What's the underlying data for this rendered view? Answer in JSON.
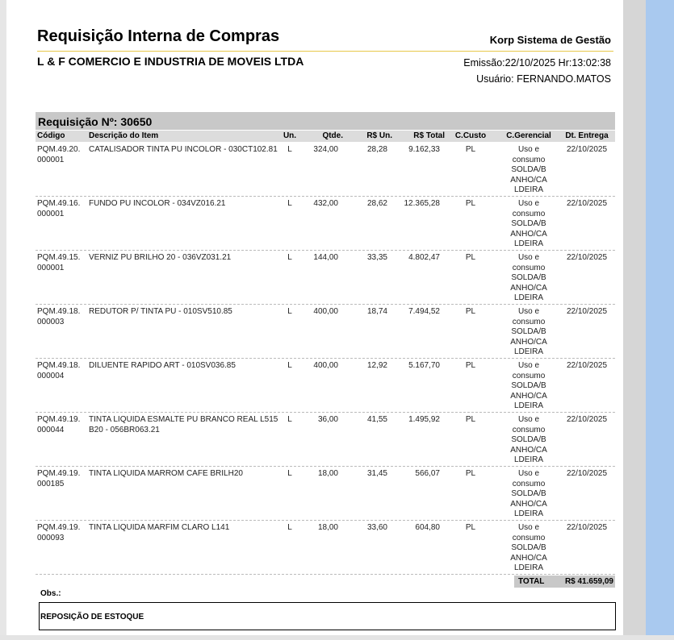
{
  "header": {
    "title": "Requisição Interna de Compras",
    "system": "Korp Sistema de Gestão",
    "company": "L & F COMERCIO E INDUSTRIA DE MOVEIS LTDA",
    "issued": "Emissão:22/10/2025 Hr:13:02:38",
    "user": "Usuário: FERNANDO.MATOS"
  },
  "requisition": "Requisição Nº: 30650",
  "table": {
    "columns": [
      "Código",
      "Descrição do Item",
      "Un.",
      "Qtde.",
      "R$ Un.",
      "R$ Total",
      "C.Custo",
      "C.Gerencial",
      "Dt. Entrega"
    ],
    "rows": [
      [
        "PQM.49.20.000001",
        "CATALISADOR TINTA PU INCOLOR - 030CT102.81",
        "L",
        "324,00",
        "28,28",
        "9.162,33",
        "PL",
        "Uso e consumo SOLDA/BANHO/CALDEIRA",
        "22/10/2025"
      ],
      [
        "PQM.49.16.000001",
        "FUNDO PU INCOLOR - 034VZ016.21",
        "L",
        "432,00",
        "28,62",
        "12.365,28",
        "PL",
        "Uso e consumo SOLDA/BANHO/CALDEIRA",
        "22/10/2025"
      ],
      [
        "PQM.49.15.000001",
        "VERNIZ PU BRILHO 20 - 036VZ031.21",
        "L",
        "144,00",
        "33,35",
        "4.802,47",
        "PL",
        "Uso e consumo SOLDA/BANHO/CALDEIRA",
        "22/10/2025"
      ],
      [
        "PQM.49.18.000003",
        "REDUTOR P/ TINTA PU - 010SV510.85",
        "L",
        "400,00",
        "18,74",
        "7.494,52",
        "PL",
        "Uso e consumo SOLDA/BANHO/CALDEIRA",
        "22/10/2025"
      ],
      [
        "PQM.49.18.000004",
        "DILUENTE RAPIDO ART - 010SV036.85",
        "L",
        "400,00",
        "12,92",
        "5.167,70",
        "PL",
        "Uso e consumo SOLDA/BANHO/CALDEIRA",
        "22/10/2025"
      ],
      [
        "PQM.49.19.000044",
        "TINTA LIQUIDA ESMALTE PU BRANCO REAL L515 B20 - 056BR063.21",
        "L",
        "36,00",
        "41,55",
        "1.495,92",
        "PL",
        "Uso e consumo SOLDA/BANHO/CALDEIRA",
        "22/10/2025"
      ],
      [
        "PQM.49.19.000185",
        "TINTA LIQUIDA MARROM CAFE BRILH20",
        "L",
        "18,00",
        "31,45",
        "566,07",
        "PL",
        "Uso e consumo SOLDA/BANHO/CALDEIRA",
        "22/10/2025"
      ],
      [
        "PQM.49.19.000093",
        "TINTA LIQUIDA  MARFIM CLARO L141",
        "L",
        "18,00",
        "33,60",
        "604,80",
        "PL",
        "Uso e consumo SOLDA/BANHO/CALDEIRA",
        "22/10/2025"
      ]
    ],
    "total_label": "TOTAL",
    "total": "R$ 41.659,09"
  },
  "obs": {
    "label": "Obs.:",
    "text": "REPOSIÇÃO DE ESTOQUE"
  }
}
